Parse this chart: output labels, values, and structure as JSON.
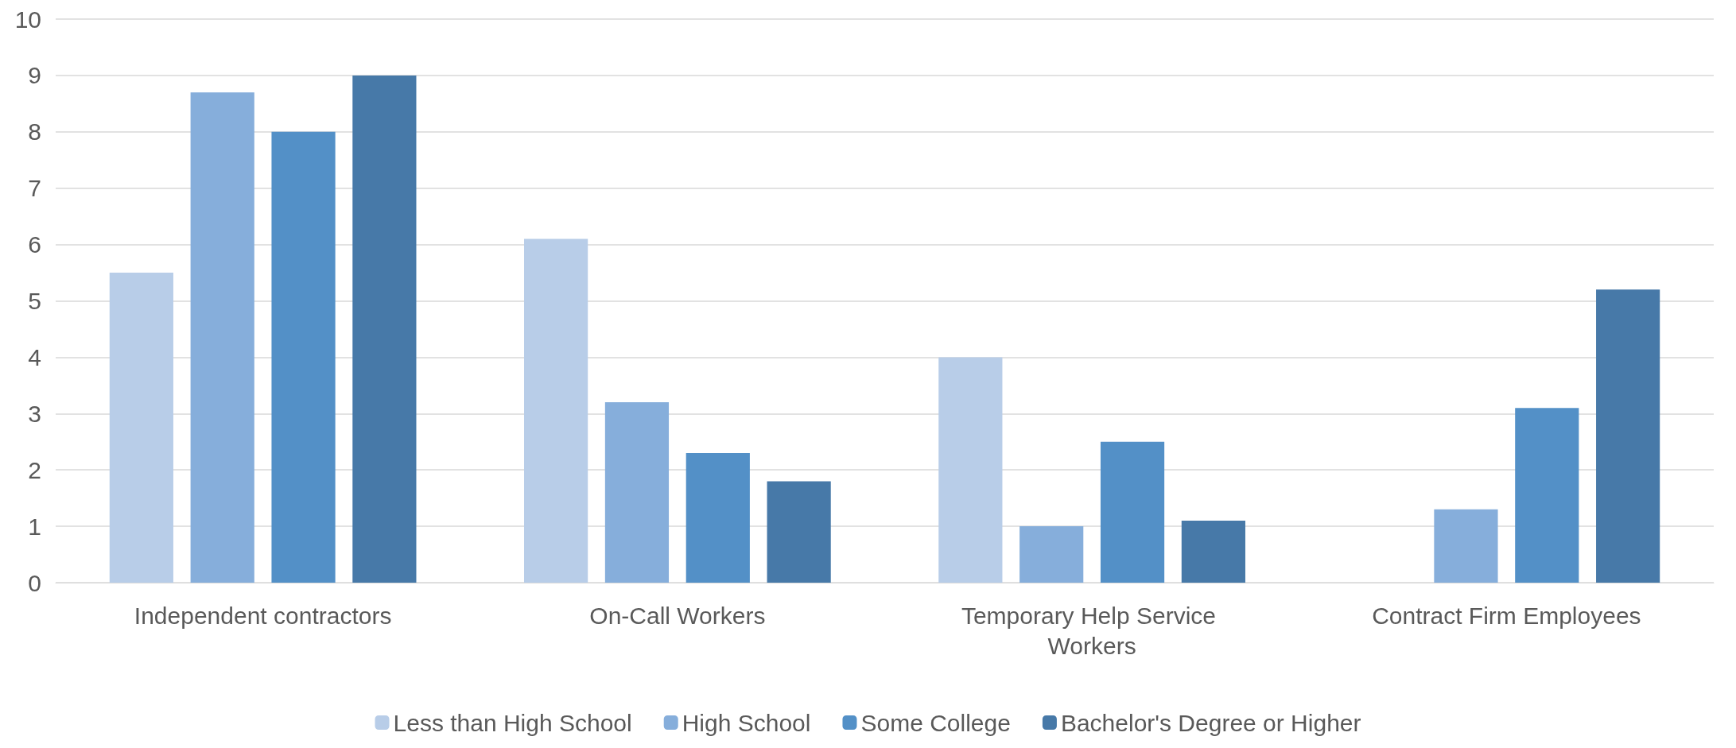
{
  "chart_data": {
    "type": "bar",
    "categories": [
      "Independent contractors",
      "On-Call Workers",
      "Temporary Help Service Workers",
      "Contract Firm Employees"
    ],
    "series": [
      {
        "name": "Less than High School",
        "color": "#b8cde8",
        "values": [
          5.5,
          6.1,
          4.0,
          null
        ]
      },
      {
        "name": "High School",
        "color": "#86aedb",
        "values": [
          8.7,
          3.2,
          1.0,
          1.3
        ]
      },
      {
        "name": "Some College",
        "color": "#5390c7",
        "values": [
          8.0,
          2.3,
          2.5,
          3.1
        ]
      },
      {
        "name": "Bachelor's Degree or Higher",
        "color": "#4779a8",
        "values": [
          9.0,
          1.8,
          1.1,
          5.2
        ]
      }
    ],
    "ylim": [
      0,
      10
    ],
    "yticks": [
      0,
      1,
      2,
      3,
      4,
      5,
      6,
      7,
      8,
      9,
      10
    ],
    "grid": "y",
    "legend": "bottom"
  }
}
